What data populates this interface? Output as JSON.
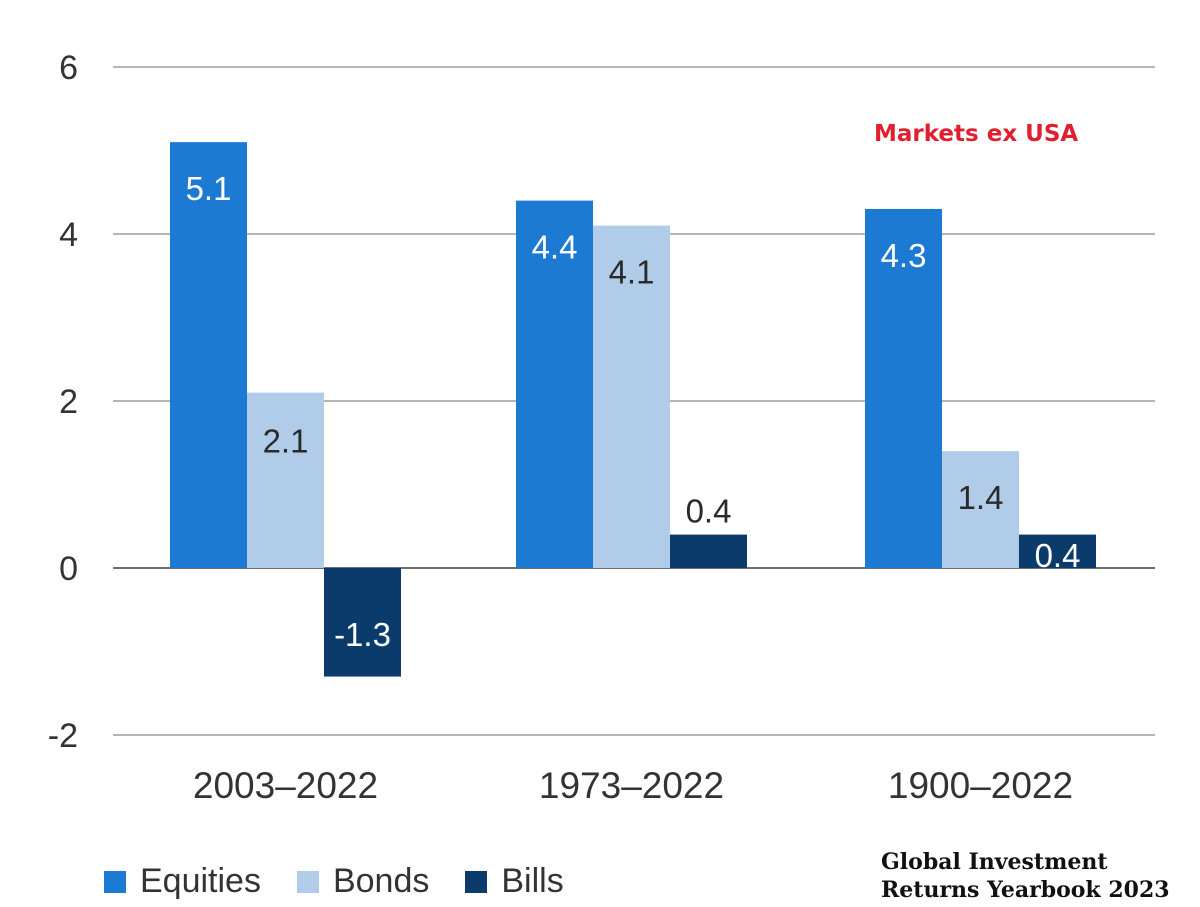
{
  "chart_data": {
    "type": "bar",
    "title": "",
    "categories": [
      "2003–2022",
      "1973–2022",
      "1900–2022"
    ],
    "series": [
      {
        "name": "Equities",
        "values": [
          5.1,
          4.4,
          4.3
        ],
        "color": "#1d7ad3"
      },
      {
        "name": "Bonds",
        "values": [
          2.1,
          4.1,
          1.4
        ],
        "color": "#b1cce9"
      },
      {
        "name": "Bills",
        "values": [
          -1.3,
          0.4,
          0.4
        ],
        "color": "#0b3b6b"
      }
    ],
    "yticks": [
      6,
      4,
      2,
      0,
      -2
    ],
    "ylim": [
      -2,
      6
    ],
    "xlabel": "",
    "ylabel": "",
    "annotation": "Markets ex USA",
    "source": [
      "Global Investment",
      "Returns Yearbook 2023"
    ]
  }
}
